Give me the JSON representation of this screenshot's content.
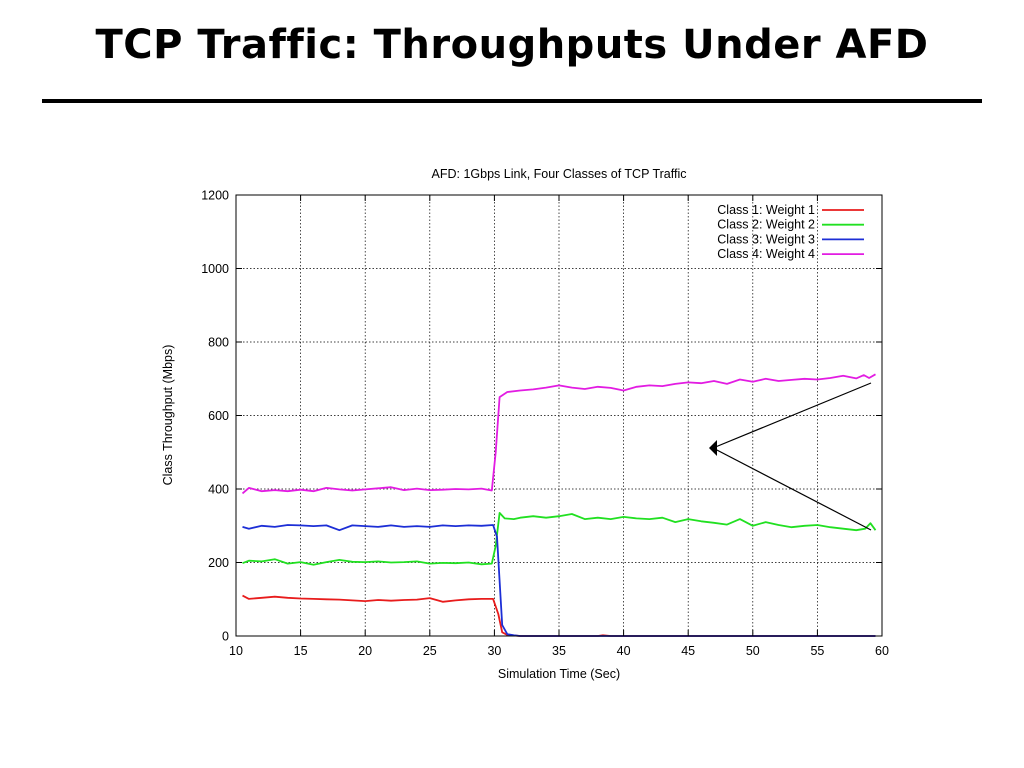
{
  "slide": {
    "title": "TCP Traffic: Throughputs Under AFD"
  },
  "chart_data": {
    "type": "line",
    "title": "AFD: 1Gbps Link, Four Classes of TCP Traffic",
    "xlabel": "Simulation Time (Sec)",
    "ylabel": "Class Throughput (Mbps)",
    "xlim": [
      10,
      60
    ],
    "ylim": [
      0,
      1200
    ],
    "xticks": [
      10,
      15,
      20,
      25,
      30,
      35,
      40,
      45,
      50,
      55,
      60
    ],
    "yticks": [
      0,
      200,
      400,
      600,
      800,
      1000,
      1200
    ],
    "grid": true,
    "legend_position": "top-right",
    "series": [
      {
        "name": "Class 1: Weight 1",
        "color": "#e81c1c",
        "points": [
          [
            10.5,
            110
          ],
          [
            11,
            101
          ],
          [
            12,
            104
          ],
          [
            13,
            107
          ],
          [
            14,
            104
          ],
          [
            15,
            102
          ],
          [
            16,
            101
          ],
          [
            17,
            100
          ],
          [
            18,
            99
          ],
          [
            19,
            97
          ],
          [
            20,
            95
          ],
          [
            21,
            98
          ],
          [
            22,
            96
          ],
          [
            23,
            98
          ],
          [
            24,
            99
          ],
          [
            25,
            103
          ],
          [
            26,
            93
          ],
          [
            27,
            97
          ],
          [
            28,
            100
          ],
          [
            29,
            101
          ],
          [
            29.9,
            101
          ],
          [
            30.3,
            60
          ],
          [
            30.6,
            10
          ],
          [
            31,
            3
          ],
          [
            32,
            0
          ],
          [
            35,
            0
          ],
          [
            38,
            0
          ],
          [
            38.4,
            2
          ],
          [
            39,
            0
          ],
          [
            45,
            0
          ],
          [
            50,
            0
          ],
          [
            55,
            0
          ],
          [
            59.5,
            0
          ]
        ]
      },
      {
        "name": "Class 2: Weight 2",
        "color": "#21e021",
        "points": [
          [
            10.5,
            198
          ],
          [
            11,
            205
          ],
          [
            12,
            203
          ],
          [
            13,
            209
          ],
          [
            14,
            197
          ],
          [
            15,
            201
          ],
          [
            16,
            194
          ],
          [
            17,
            201
          ],
          [
            18,
            207
          ],
          [
            19,
            202
          ],
          [
            20,
            201
          ],
          [
            21,
            203
          ],
          [
            22,
            200
          ],
          [
            23,
            201
          ],
          [
            24,
            203
          ],
          [
            25,
            197
          ],
          [
            26,
            199
          ],
          [
            27,
            198
          ],
          [
            28,
            200
          ],
          [
            29,
            195
          ],
          [
            29.8,
            197
          ],
          [
            30.1,
            245
          ],
          [
            30.4,
            335
          ],
          [
            30.8,
            320
          ],
          [
            31.5,
            318
          ],
          [
            32,
            322
          ],
          [
            33,
            326
          ],
          [
            34,
            322
          ],
          [
            35,
            326
          ],
          [
            36,
            332
          ],
          [
            37,
            318
          ],
          [
            38,
            322
          ],
          [
            39,
            318
          ],
          [
            40,
            324
          ],
          [
            41,
            320
          ],
          [
            42,
            318
          ],
          [
            43,
            322
          ],
          [
            44,
            310
          ],
          [
            45,
            318
          ],
          [
            46,
            312
          ],
          [
            47,
            308
          ],
          [
            48,
            303
          ],
          [
            49,
            318
          ],
          [
            50,
            300
          ],
          [
            51,
            310
          ],
          [
            52,
            302
          ],
          [
            53,
            296
          ],
          [
            54,
            300
          ],
          [
            55,
            302
          ],
          [
            56,
            296
          ],
          [
            57,
            292
          ],
          [
            58,
            288
          ],
          [
            58.7,
            292
          ],
          [
            59.1,
            307
          ],
          [
            59.5,
            288
          ]
        ]
      },
      {
        "name": "Class 3: Weight 3",
        "color": "#1c2ed6",
        "points": [
          [
            10.5,
            297
          ],
          [
            11,
            292
          ],
          [
            12,
            300
          ],
          [
            13,
            297
          ],
          [
            14,
            302
          ],
          [
            15,
            301
          ],
          [
            16,
            299
          ],
          [
            17,
            301
          ],
          [
            18,
            288
          ],
          [
            19,
            301
          ],
          [
            20,
            299
          ],
          [
            21,
            297
          ],
          [
            22,
            301
          ],
          [
            23,
            297
          ],
          [
            24,
            299
          ],
          [
            25,
            297
          ],
          [
            26,
            301
          ],
          [
            27,
            299
          ],
          [
            28,
            301
          ],
          [
            29,
            300
          ],
          [
            29.9,
            302
          ],
          [
            30.2,
            270
          ],
          [
            30.6,
            30
          ],
          [
            31,
            5
          ],
          [
            31.5,
            2
          ],
          [
            32,
            0
          ],
          [
            35,
            0
          ],
          [
            40,
            0
          ],
          [
            45,
            0
          ],
          [
            50,
            0
          ],
          [
            55,
            0
          ],
          [
            59.5,
            0
          ]
        ]
      },
      {
        "name": "Class 4: Weight 4",
        "color": "#e21ce2",
        "points": [
          [
            10.5,
            388
          ],
          [
            11,
            403
          ],
          [
            12,
            394
          ],
          [
            13,
            397
          ],
          [
            14,
            394
          ],
          [
            15,
            398
          ],
          [
            16,
            394
          ],
          [
            17,
            403
          ],
          [
            18,
            399
          ],
          [
            19,
            396
          ],
          [
            20,
            399
          ],
          [
            21,
            402
          ],
          [
            22,
            405
          ],
          [
            23,
            397
          ],
          [
            24,
            401
          ],
          [
            25,
            397
          ],
          [
            26,
            398
          ],
          [
            27,
            400
          ],
          [
            28,
            399
          ],
          [
            29,
            401
          ],
          [
            29.8,
            396
          ],
          [
            30.1,
            500
          ],
          [
            30.4,
            650
          ],
          [
            31,
            664
          ],
          [
            32,
            668
          ],
          [
            33,
            671
          ],
          [
            34,
            676
          ],
          [
            35,
            682
          ],
          [
            36,
            676
          ],
          [
            37,
            672
          ],
          [
            38,
            678
          ],
          [
            39,
            675
          ],
          [
            40,
            668
          ],
          [
            41,
            678
          ],
          [
            42,
            682
          ],
          [
            43,
            680
          ],
          [
            44,
            686
          ],
          [
            45,
            690
          ],
          [
            46,
            688
          ],
          [
            47,
            694
          ],
          [
            48,
            686
          ],
          [
            49,
            698
          ],
          [
            50,
            692
          ],
          [
            51,
            700
          ],
          [
            52,
            694
          ],
          [
            53,
            697
          ],
          [
            54,
            700
          ],
          [
            55,
            698
          ],
          [
            56,
            702
          ],
          [
            57,
            708
          ],
          [
            58,
            701
          ],
          [
            58.6,
            710
          ],
          [
            59,
            702
          ],
          [
            59.5,
            712
          ]
        ]
      }
    ]
  }
}
